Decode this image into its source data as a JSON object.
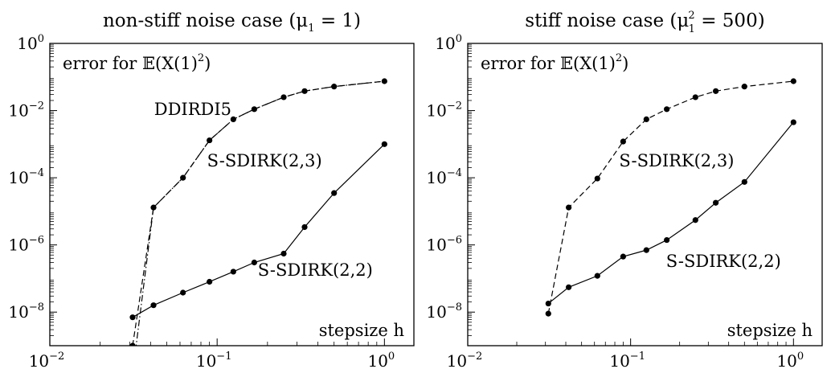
{
  "chart_data": [
    {
      "type": "line",
      "title": "non-stiff noise case (μ",
      "title_sub": "1",
      "title_tail": " = 1)",
      "corner_label": "error for 𝔼(X(1)",
      "corner_sup": "2",
      "corner_tail": ")",
      "xlabel": "stepsize h",
      "xscale": "log",
      "yscale": "log",
      "xlim": [
        0.01,
        1.5
      ],
      "ylim": [
        1e-09,
        1
      ],
      "x_tick_labels": [
        {
          "base": "10",
          "exp": "−2"
        },
        {
          "base": "10",
          "exp": "−1"
        },
        {
          "base": "10",
          "exp": "0"
        }
      ],
      "y_tick_labels": [
        {
          "base": "10",
          "exp": "0"
        },
        {
          "base": "10",
          "exp": "−2"
        },
        {
          "base": "10",
          "exp": "−4"
        },
        {
          "base": "10",
          "exp": "−6"
        },
        {
          "base": "10",
          "exp": "−8"
        }
      ],
      "x_ticks": [
        0.01,
        0.1,
        1
      ],
      "y_ticks": [
        1,
        0.01,
        0.0001,
        1e-06,
        1e-08
      ],
      "series": [
        {
          "name": "S-SDIRK(2,2)",
          "style": "solid",
          "markers": true,
          "x": [
            0.03125,
            0.04167,
            0.0625,
            0.09,
            0.125,
            0.1667,
            0.25,
            0.3333,
            0.5,
            1.0
          ],
          "y": [
            7e-09,
            1.6e-08,
            3.8e-08,
            8e-08,
            1.6e-07,
            3e-07,
            5.5e-07,
            3.4e-06,
            3.5e-05,
            0.001
          ]
        },
        {
          "name": "S-SDIRK(2,3)",
          "style": "dashed",
          "markers": true,
          "x": [
            0.03125,
            0.04167,
            0.0625,
            0.09,
            0.125,
            0.1667,
            0.25,
            0.3333,
            0.5,
            1.0
          ],
          "y": [
            1e-09,
            1.3e-05,
            0.0001,
            0.0013,
            0.0055,
            0.011,
            0.025,
            0.038,
            0.052,
            0.075
          ]
        },
        {
          "name": "DDIRDI5",
          "style": "dashdot",
          "markers": false,
          "x": [
            0.0325,
            0.04167,
            0.0625,
            0.09,
            0.125,
            0.1667,
            0.25,
            0.3333,
            0.5,
            1.0
          ],
          "y": [
            7e-10,
            1.3e-05,
            0.0001,
            0.0013,
            0.0055,
            0.011,
            0.025,
            0.038,
            0.052,
            0.075
          ]
        }
      ],
      "annotations": [
        {
          "text": "DDIRDI5",
          "x": 0.042,
          "y": 0.0075
        },
        {
          "text": "S-SDIRK(2,3)",
          "x": 0.087,
          "y": 0.00022
        },
        {
          "text": "S-SDIRK(2,2)",
          "x": 0.175,
          "y": 1.2e-07
        }
      ]
    },
    {
      "type": "line",
      "title": "stiff noise case (μ",
      "title_sub": "1",
      "title_sup": "2",
      "title_tail": " = 500)",
      "corner_label": "error for 𝔼(X(1)",
      "corner_sup": "2",
      "corner_tail": ")",
      "xlabel": "stepsize h",
      "xscale": "log",
      "yscale": "log",
      "xlim": [
        0.01,
        1.5
      ],
      "ylim": [
        1e-09,
        1
      ],
      "x_tick_labels": [
        {
          "base": "10",
          "exp": "−2"
        },
        {
          "base": "10",
          "exp": "−1"
        },
        {
          "base": "10",
          "exp": "0"
        }
      ],
      "y_tick_labels": [
        {
          "base": "10",
          "exp": "0"
        },
        {
          "base": "10",
          "exp": "−2"
        },
        {
          "base": "10",
          "exp": "−4"
        },
        {
          "base": "10",
          "exp": "−6"
        },
        {
          "base": "10",
          "exp": "−8"
        }
      ],
      "x_ticks": [
        0.01,
        0.1,
        1
      ],
      "y_ticks": [
        1,
        0.01,
        0.0001,
        1e-06,
        1e-08
      ],
      "series": [
        {
          "name": "S-SDIRK(2,2)",
          "style": "solid",
          "markers": true,
          "x": [
            0.03125,
            0.04167,
            0.0625,
            0.09,
            0.125,
            0.1667,
            0.25,
            0.3333,
            0.5,
            1.0
          ],
          "y": [
            1.8e-08,
            5.5e-08,
            1.2e-07,
            4.5e-07,
            7e-07,
            1.4e-06,
            5.5e-06,
            1.8e-05,
            7.5e-05,
            0.0045
          ]
        },
        {
          "name": "S-SDIRK(2,3)",
          "style": "dashed",
          "markers": true,
          "x": [
            0.03125,
            0.04167,
            0.0625,
            0.09,
            0.125,
            0.1667,
            0.25,
            0.3333,
            0.5,
            1.0
          ],
          "y": [
            9e-09,
            1.3e-05,
            9.5e-05,
            0.0012,
            0.0055,
            0.011,
            0.025,
            0.038,
            0.052,
            0.075
          ]
        }
      ],
      "annotations": [
        {
          "text": "S-SDIRK(2,3)",
          "x": 0.085,
          "y": 0.00022
        },
        {
          "text": "S-SDIRK(2,2)",
          "x": 0.165,
          "y": 2.2e-07
        }
      ]
    }
  ]
}
